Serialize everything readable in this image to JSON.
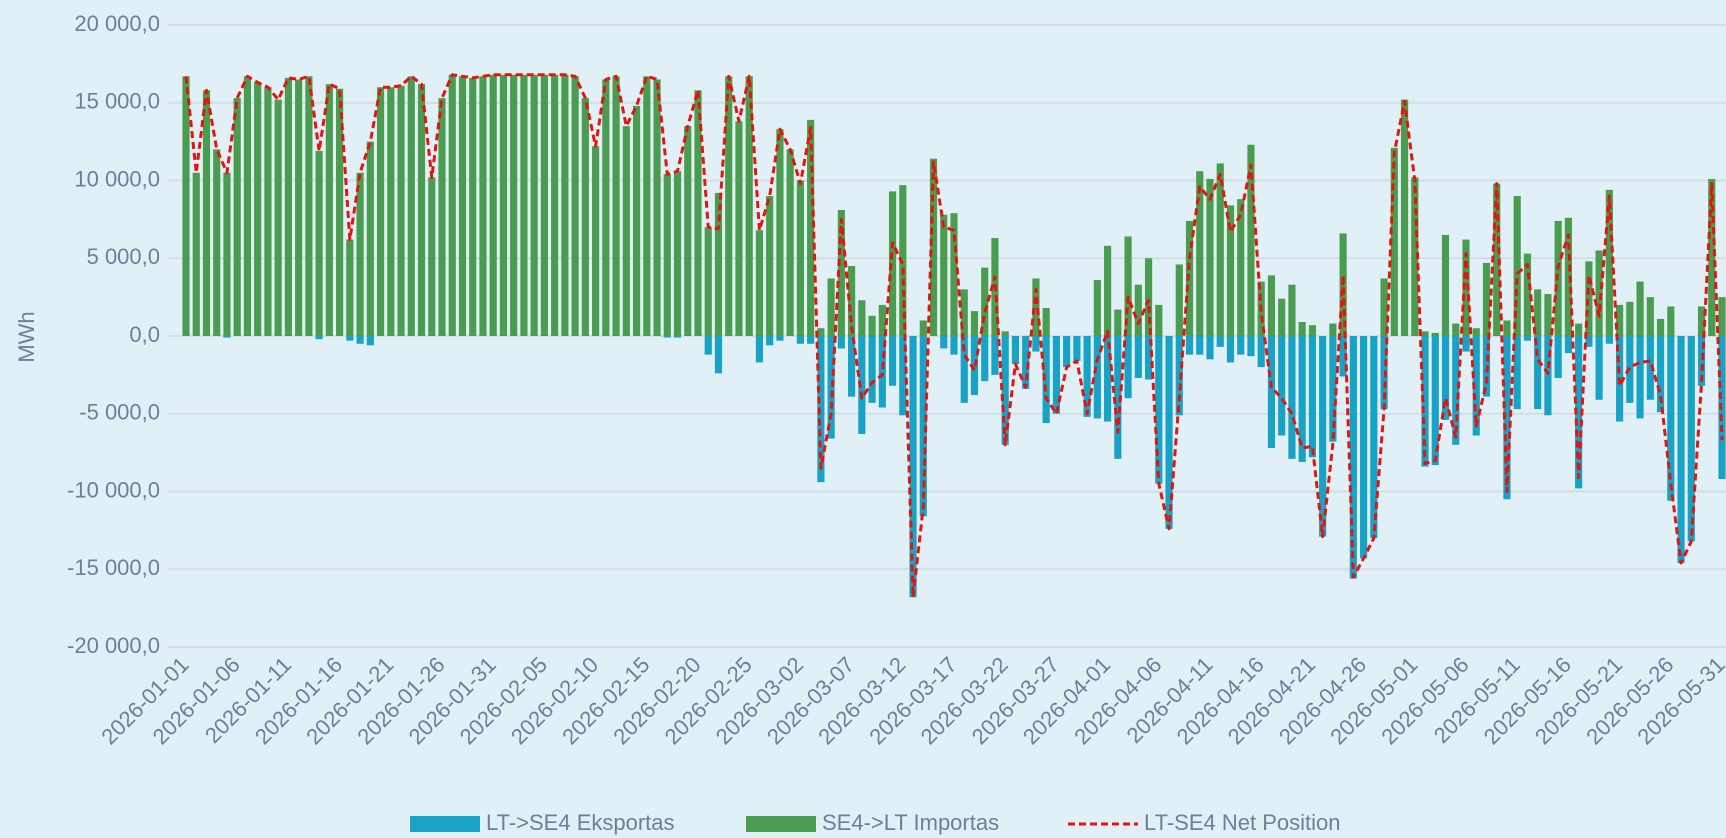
{
  "chart_data": {
    "type": "bar",
    "y_label": "MWh",
    "categories": [
      "2026-01-01",
      null,
      null,
      null,
      null,
      "2026-01-06",
      null,
      null,
      null,
      null,
      "2026-01-11",
      null,
      null,
      null,
      null,
      "2026-01-16",
      null,
      null,
      null,
      null,
      "2026-01-21",
      null,
      null,
      null,
      null,
      "2026-01-26",
      null,
      null,
      null,
      null,
      "2026-01-31",
      null,
      null,
      null,
      null,
      "2026-02-05",
      null,
      null,
      null,
      null,
      "2026-02-10",
      null,
      null,
      null,
      null,
      "2026-02-15",
      null,
      null,
      null,
      null,
      "2026-02-20",
      null,
      null,
      null,
      null,
      "2026-02-25",
      null,
      null,
      null,
      null,
      "2026-03-02",
      null,
      null,
      null,
      null,
      "2026-03-07",
      null,
      null,
      null,
      null,
      "2026-03-12",
      null,
      null,
      null,
      null,
      "2026-03-17",
      null,
      null,
      null,
      null,
      "2026-03-22",
      null,
      null,
      null,
      null,
      "2026-03-27",
      null,
      null,
      null,
      null,
      "2026-04-01",
      null,
      null,
      null,
      null,
      "2026-04-06",
      null,
      null,
      null,
      null,
      "2026-04-11",
      null,
      null,
      null,
      null,
      "2026-04-16",
      null,
      null,
      null,
      null,
      "2026-04-21",
      null,
      null,
      null,
      null,
      "2026-04-26",
      null,
      null,
      null,
      null,
      "2026-05-01",
      null,
      null,
      null,
      null,
      "2026-05-06",
      null,
      null,
      null,
      null,
      "2026-05-11",
      null,
      null,
      null,
      null,
      "2026-05-16",
      null,
      null,
      null,
      null,
      "2026-05-21",
      null,
      null,
      null,
      null,
      "2026-05-26",
      null,
      null,
      null,
      null,
      "2026-05-31"
    ],
    "series": [
      {
        "name": "LT->SE4 Eksportas",
        "type": "bar",
        "color": "#18a3c6",
        "values": [
          0,
          0,
          0,
          0,
          -100,
          0,
          0,
          0,
          0,
          0,
          0,
          0,
          0,
          -200,
          0,
          0,
          -300,
          -500,
          -600,
          0,
          0,
          0,
          0,
          0,
          0,
          0,
          0,
          0,
          0,
          0,
          0,
          0,
          0,
          0,
          0,
          0,
          0,
          0,
          0,
          0,
          0,
          0,
          0,
          0,
          0,
          0,
          0,
          -100,
          -100,
          0,
          0,
          -1200,
          -2400,
          0,
          0,
          0,
          -1700,
          -600,
          -300,
          0,
          -500,
          -500,
          -9400,
          -6600,
          -800,
          -3900,
          -6300,
          -4300,
          -4600,
          -3200,
          -5100,
          -16800,
          -11600,
          0,
          -800,
          -1200,
          -4300,
          -3800,
          -2900,
          -2500,
          -7000,
          -1800,
          -3400,
          -1000,
          -5600,
          -5000,
          -2000,
          -1600,
          -5200,
          -5300,
          -5500,
          -7900,
          -4000,
          -2700,
          -2800,
          -9500,
          -12400,
          -5100,
          -1200,
          -1200,
          -1500,
          -700,
          -1700,
          -1200,
          -1300,
          -2000,
          -7200,
          -6400,
          -7900,
          -8100,
          -7800,
          -12900,
          -6800,
          -2600,
          -15600,
          -14300,
          -13000,
          -4700,
          0,
          0,
          0,
          -8400,
          -8300,
          -5400,
          -7000,
          -1000,
          -6400,
          -3900,
          0,
          -10500,
          -4700,
          -300,
          -4700,
          -5100,
          -2700,
          -1100,
          -9800,
          -700,
          -4100,
          -500,
          -5500,
          -4300,
          -5300,
          -4100,
          -4900,
          -10600,
          -14600,
          -13200,
          -3200,
          0,
          -9200
        ]
      },
      {
        "name": "SE4->LT Importas",
        "type": "bar",
        "color": "#4a9d50",
        "values": [
          16700,
          10500,
          15800,
          12000,
          10500,
          15300,
          16700,
          16300,
          16000,
          15200,
          16600,
          16500,
          16700,
          11900,
          16200,
          15900,
          6200,
          10500,
          12500,
          16000,
          16000,
          16100,
          16700,
          16200,
          10200,
          15300,
          16800,
          16700,
          16600,
          16700,
          16800,
          16800,
          16800,
          16800,
          16800,
          16800,
          16800,
          16800,
          16700,
          15300,
          12200,
          16500,
          16700,
          13500,
          14800,
          16700,
          16500,
          10400,
          10600,
          13500,
          15800,
          7000,
          9200,
          16700,
          13800,
          16700,
          6800,
          9000,
          13300,
          12000,
          10000,
          13900,
          500,
          3700,
          8100,
          4500,
          2300,
          1300,
          2000,
          9300,
          9700,
          0,
          1000,
          11400,
          7800,
          7900,
          3000,
          1600,
          4400,
          6300,
          300,
          0,
          0,
          3700,
          1800,
          0,
          0,
          0,
          0,
          3600,
          5800,
          1700,
          6400,
          3300,
          5000,
          2000,
          0,
          4600,
          7400,
          10600,
          10100,
          11100,
          8400,
          8800,
          12300,
          3500,
          3900,
          2400,
          3300,
          900,
          700,
          0,
          800,
          6600,
          0,
          0,
          0,
          3700,
          12100,
          15200,
          10200,
          300,
          200,
          6500,
          800,
          6200,
          500,
          4700,
          9800,
          1000,
          9000,
          5300,
          3000,
          2700,
          7400,
          7600,
          800,
          4800,
          5500,
          9400,
          2000,
          2200,
          3500,
          2500,
          1100,
          1900,
          0,
          0,
          1900,
          10100,
          2500
        ]
      },
      {
        "name": "LT-SE4 Net Position",
        "type": "line",
        "color": "#e4140f",
        "values": [
          16700,
          10500,
          15800,
          12000,
          10500,
          15300,
          16700,
          16300,
          16000,
          15200,
          16600,
          16500,
          16700,
          11900,
          16200,
          15900,
          6200,
          10500,
          12500,
          16000,
          16000,
          16100,
          16700,
          16200,
          10200,
          15300,
          16800,
          16700,
          16600,
          16700,
          16800,
          16800,
          16800,
          16800,
          16800,
          16800,
          16800,
          16800,
          16700,
          15300,
          12200,
          16500,
          16700,
          13500,
          14800,
          16700,
          16500,
          10400,
          10600,
          13500,
          15800,
          7000,
          6900,
          16700,
          13800,
          16700,
          6800,
          9000,
          13300,
          12000,
          9800,
          13400,
          -8500,
          -5000,
          7500,
          600,
          -4000,
          -3000,
          -2500,
          6000,
          4600,
          -16800,
          -11000,
          11200,
          7000,
          6800,
          -1200,
          -2200,
          1500,
          3800,
          -7000,
          -1800,
          -3300,
          3000,
          -4000,
          -5000,
          -2000,
          -1600,
          -5000,
          -1500,
          300,
          -6200,
          2500,
          800,
          2300,
          -9500,
          -12400,
          -4000,
          5000,
          9600,
          8800,
          10400,
          6700,
          7800,
          11000,
          1500,
          -3300,
          -4000,
          -5000,
          -7200,
          -7100,
          -12900,
          -6900,
          3900,
          -15500,
          -14300,
          -13000,
          -4700,
          11800,
          15100,
          10000,
          -8200,
          -8000,
          -4000,
          -6500,
          5300,
          -5800,
          -3000,
          9800,
          -10000,
          4000,
          4600,
          -1500,
          -2400,
          4500,
          6500,
          -9100,
          3900,
          1300,
          9000,
          -3200,
          -2000,
          -1700,
          -1600,
          -3800,
          -9500,
          -14600,
          -13200,
          -3000,
          9800,
          -6700
        ]
      }
    ],
    "ylim": [
      -20000,
      20000
    ],
    "yticks": [
      {
        "value": -20000,
        "label": "-20 000,0"
      },
      {
        "value": -15000,
        "label": "-15 000,0"
      },
      {
        "value": -10000,
        "label": "-10 000,0"
      },
      {
        "value": -5000,
        "label": "-5 000,0"
      },
      {
        "value": 0,
        "label": "0,0"
      },
      {
        "value": 5000,
        "label": "5 000,0"
      },
      {
        "value": 10000,
        "label": "10 000,0"
      },
      {
        "value": 15000,
        "label": "15 000,0"
      },
      {
        "value": 20000,
        "label": "20 000,0"
      }
    ],
    "grid": true,
    "legend": "bottom"
  }
}
